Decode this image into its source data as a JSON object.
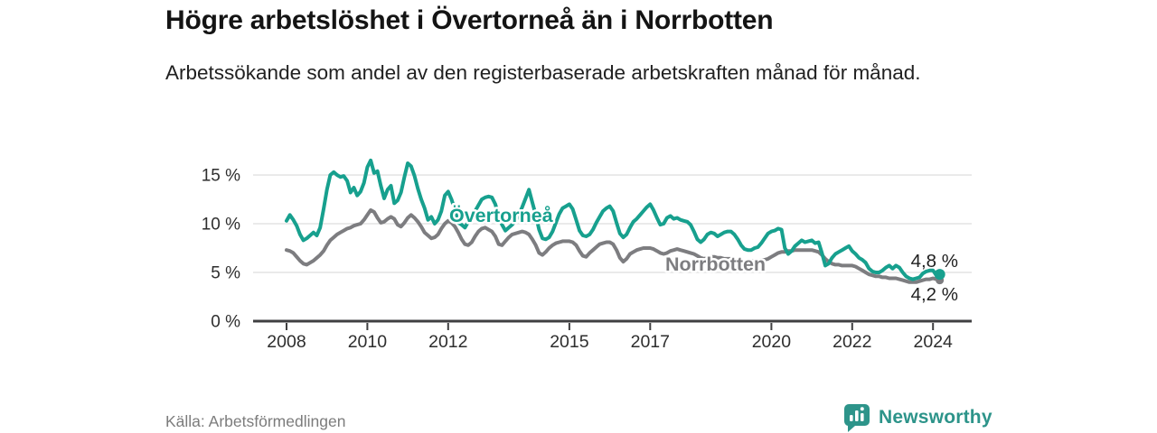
{
  "header": {
    "title": "Högre arbetslöshet i Övertorneå än i Norrbotten",
    "subtitle": "Arbetssökande som andel av den registerbaserade arbetskraften månad för månad."
  },
  "footer": {
    "source": "Källa: Arbetsförmedlingen",
    "brand": "Newsworthy"
  },
  "colors": {
    "overtornea": "#17a08e",
    "norrbotten": "#7d7d80",
    "gridline": "#e3e3e3",
    "axis": "#3f3f41",
    "tick_text": "#2e2e2e",
    "annotation_text": "#1f1f1f",
    "brand_teal": "#2d948a",
    "background": "#ffffff"
  },
  "chart_data": {
    "type": "line",
    "title": "Högre arbetslöshet i Övertorneå än i Norrbotten",
    "subtitle": "Arbetssökande som andel av den registerbaserade arbetskraften månad för månad.",
    "xlabel": "",
    "ylabel": "",
    "unit": "%",
    "frequency": "monthly",
    "x_start_year": 2008,
    "x_end": "2024-03",
    "xticks": [
      2008,
      2010,
      2012,
      2015,
      2017,
      2020,
      2022,
      2024
    ],
    "yticks": [
      0,
      5,
      10,
      15
    ],
    "ytick_labels": [
      "0 %",
      "5 %",
      "10 %",
      "15 %"
    ],
    "ylim": [
      0,
      17.2
    ],
    "grid": "horizontal-only",
    "legend_position": "inline-labels-on-lines",
    "series": [
      {
        "name": "Norrbotten",
        "color": "#7d7d80",
        "end_label": "4,2 %",
        "end_value": 4.2,
        "values": [
          7.3,
          7.2,
          7.0,
          6.6,
          6.2,
          5.9,
          5.8,
          6.0,
          6.2,
          6.5,
          6.8,
          7.2,
          7.8,
          8.3,
          8.6,
          8.9,
          9.1,
          9.3,
          9.5,
          9.6,
          9.8,
          9.9,
          10.0,
          10.4,
          10.9,
          11.4,
          11.2,
          10.6,
          10.1,
          10.2,
          10.5,
          10.7,
          10.5,
          9.9,
          9.7,
          10.1,
          10.6,
          10.9,
          10.6,
          10.2,
          9.7,
          9.1,
          8.8,
          8.5,
          8.6,
          8.9,
          9.5,
          10.0,
          10.3,
          10.1,
          9.7,
          9.1,
          8.4,
          7.9,
          7.8,
          8.1,
          8.7,
          9.2,
          9.5,
          9.6,
          9.4,
          9.2,
          8.7,
          7.9,
          7.8,
          8.2,
          8.6,
          8.9,
          9.0,
          9.1,
          9.2,
          9.1,
          8.9,
          8.4,
          7.8,
          7.0,
          6.8,
          7.1,
          7.5,
          7.8,
          8.0,
          8.1,
          8.2,
          8.2,
          8.2,
          8.1,
          7.8,
          7.2,
          6.7,
          6.6,
          7.0,
          7.3,
          7.6,
          7.9,
          8.0,
          8.1,
          8.1,
          7.9,
          7.3,
          6.5,
          6.1,
          6.4,
          6.9,
          7.1,
          7.3,
          7.4,
          7.5,
          7.5,
          7.5,
          7.4,
          7.2,
          7.0,
          6.9,
          7.0,
          7.2,
          7.3,
          7.4,
          7.3,
          7.2,
          7.1,
          7.0,
          6.9,
          6.7,
          6.5,
          6.4,
          6.5,
          6.6,
          6.6,
          6.5,
          6.5,
          6.4,
          6.4,
          6.4,
          6.3,
          6.2,
          6.1,
          6.0,
          6.1,
          6.2,
          6.2,
          6.2,
          6.3,
          6.3,
          6.4,
          6.6,
          6.8,
          7.0,
          7.1,
          7.1,
          7.2,
          7.2,
          7.3,
          7.3,
          7.3,
          7.3,
          7.3,
          7.3,
          7.2,
          7.1,
          6.8,
          6.4,
          6.1,
          5.9,
          5.8,
          5.8,
          5.7,
          5.7,
          5.7,
          5.7,
          5.6,
          5.4,
          5.2,
          5.0,
          4.8,
          4.7,
          4.6,
          4.6,
          4.5,
          4.5,
          4.4,
          4.4,
          4.4,
          4.3,
          4.2,
          4.1,
          4.0,
          4.0,
          4.0,
          4.1,
          4.2,
          4.3,
          4.3,
          4.4,
          4.3,
          4.2
        ]
      },
      {
        "name": "Övertorneå",
        "color": "#17a08e",
        "end_label": "4,8 %",
        "end_value": 4.8,
        "values": [
          10.3,
          10.9,
          10.4,
          9.8,
          8.9,
          8.3,
          8.5,
          8.8,
          9.1,
          8.8,
          9.6,
          11.5,
          13.5,
          15.0,
          15.3,
          15.0,
          14.8,
          14.9,
          14.4,
          13.2,
          13.7,
          12.9,
          13.3,
          14.2,
          15.8,
          16.5,
          15.2,
          15.4,
          13.9,
          12.6,
          13.5,
          13.9,
          12.1,
          12.4,
          13.2,
          14.8,
          16.2,
          15.9,
          14.9,
          13.6,
          12.5,
          11.6,
          10.4,
          10.7,
          10.0,
          10.4,
          11.3,
          12.9,
          13.3,
          12.5,
          11.4,
          10.1,
          9.9,
          9.6,
          10.2,
          10.8,
          11.3,
          11.9,
          12.5,
          12.7,
          12.8,
          12.7,
          12.0,
          10.8,
          9.9,
          9.3,
          9.6,
          9.9,
          10.3,
          10.9,
          11.7,
          12.6,
          13.5,
          12.2,
          10.9,
          9.4,
          8.5,
          8.4,
          8.6,
          9.2,
          10.1,
          11.0,
          11.6,
          11.8,
          12.0,
          11.5,
          10.4,
          9.3,
          8.8,
          8.7,
          8.9,
          9.4,
          10.1,
          10.7,
          11.3,
          11.6,
          11.8,
          11.3,
          10.1,
          9.0,
          8.6,
          8.9,
          9.6,
          10.2,
          10.5,
          10.9,
          11.3,
          11.7,
          12.0,
          11.4,
          10.6,
          9.9,
          10.0,
          10.6,
          10.8,
          10.5,
          10.6,
          10.4,
          10.3,
          10.2,
          9.9,
          9.2,
          8.4,
          8.1,
          8.4,
          8.9,
          9.1,
          9.0,
          8.7,
          8.9,
          9.1,
          9.2,
          9.2,
          8.9,
          8.4,
          7.8,
          7.4,
          7.3,
          7.3,
          7.5,
          7.6,
          8.0,
          8.5,
          9.0,
          9.2,
          9.3,
          9.5,
          9.4,
          7.5,
          6.9,
          7.2,
          7.7,
          8.0,
          8.3,
          8.1,
          8.2,
          8.3,
          8.0,
          8.1,
          7.0,
          5.7,
          5.9,
          6.5,
          6.9,
          7.1,
          7.3,
          7.5,
          7.7,
          7.2,
          6.9,
          6.5,
          6.3,
          6.0,
          5.4,
          5.1,
          5.0,
          5.0,
          5.2,
          5.5,
          5.7,
          5.4,
          5.7,
          5.5,
          5.0,
          4.6,
          4.4,
          4.3,
          4.4,
          4.5,
          4.9,
          5.1,
          5.2,
          5.2,
          4.7,
          4.8
        ]
      }
    ],
    "annotations": [
      {
        "text": "Övertorneå",
        "type": "series-label",
        "series": "Övertorneå"
      },
      {
        "text": "Norrbotten",
        "type": "series-label",
        "series": "Norrbotten"
      },
      {
        "text": "4,8 %",
        "type": "end-value-label",
        "series": "Övertorneå"
      },
      {
        "text": "4,2 %",
        "type": "end-value-label",
        "series": "Norrbotten"
      }
    ]
  }
}
